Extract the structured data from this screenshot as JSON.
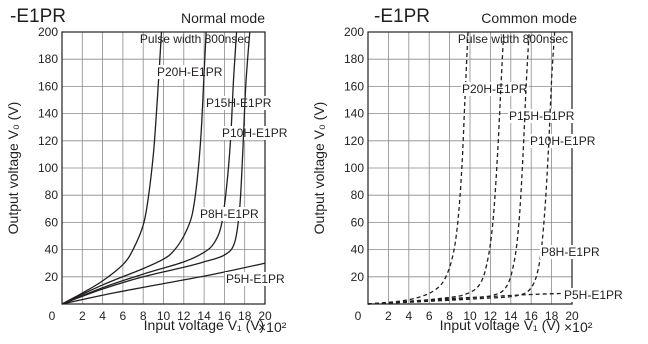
{
  "chart_data": [
    {
      "type": "line",
      "title": "-E1PR",
      "subtitle": "Normal mode",
      "xlabel": "Input voltage V₁ (V)",
      "ylabel": "Output voltage V₀ (V)",
      "x_multiplier": "×10²",
      "annotation": "Pulse width 800nsec",
      "xlim": [
        0,
        20
      ],
      "ylim": [
        0,
        200
      ],
      "x_ticks": [
        0,
        2,
        4,
        6,
        8,
        10,
        12,
        14,
        16,
        18,
        20
      ],
      "y_ticks": [
        0,
        20,
        40,
        60,
        80,
        100,
        120,
        140,
        160,
        180,
        200
      ],
      "grid": true,
      "line_style": "solid",
      "series": [
        {
          "name": "P20H-E1PR",
          "x": [
            0,
            2,
            4,
            6,
            7,
            8,
            8.5,
            9,
            9.3,
            9.6,
            9.8
          ],
          "y": [
            0,
            8,
            17,
            29,
            40,
            58,
            78,
            110,
            140,
            175,
            200
          ]
        },
        {
          "name": "P15H-E1PR",
          "x": [
            0,
            4,
            8,
            10,
            11,
            12,
            12.8,
            13.3,
            13.7,
            14,
            14.2
          ],
          "y": [
            0,
            14,
            26,
            33,
            39,
            50,
            65,
            90,
            125,
            170,
            200
          ]
        },
        {
          "name": "P10H-E1PR",
          "x": [
            0,
            4,
            8,
            12,
            14,
            15,
            15.7,
            16.2,
            16.6,
            16.9,
            17.2
          ],
          "y": [
            0,
            12,
            22,
            31,
            38,
            45,
            58,
            85,
            120,
            165,
            200
          ]
        },
        {
          "name": "P8H-E1PR",
          "x": [
            0,
            4,
            8,
            12,
            14,
            16,
            17,
            17.5,
            17.8,
            18.1,
            18.5
          ],
          "y": [
            0,
            11,
            20,
            27,
            31,
            36,
            45,
            70,
            110,
            160,
            200
          ]
        },
        {
          "name": "P5H-E1PR",
          "x": [
            0,
            5,
            10,
            15,
            20
          ],
          "y": [
            0,
            8,
            15,
            22,
            30
          ]
        }
      ]
    },
    {
      "type": "line",
      "title": "-E1PR",
      "subtitle": "Common mode",
      "xlabel": "Input voltage V₁ (V)",
      "ylabel": "Output voltage V₀ (V)",
      "x_multiplier": "×10²",
      "annotation": "Pulse width 800nsec",
      "xlim": [
        0,
        20
      ],
      "ylim": [
        0,
        200
      ],
      "x_ticks": [
        0,
        2,
        4,
        6,
        8,
        10,
        12,
        14,
        16,
        18,
        20
      ],
      "y_ticks": [
        0,
        20,
        40,
        60,
        80,
        100,
        120,
        140,
        160,
        180,
        200
      ],
      "grid": true,
      "line_style": "dashed",
      "series": [
        {
          "name": "P20H-E1PR",
          "x": [
            0,
            3,
            5,
            6.5,
            7.5,
            8.3,
            8.8,
            9.2,
            9.5,
            9.8
          ],
          "y": [
            0,
            2,
            5,
            10,
            18,
            35,
            60,
            100,
            150,
            200
          ]
        },
        {
          "name": "P15H-E1PR",
          "x": [
            0,
            4,
            7,
            9.5,
            11,
            11.8,
            12.3,
            12.7,
            13,
            13.3
          ],
          "y": [
            0,
            2,
            4,
            7,
            15,
            35,
            65,
            110,
            155,
            200
          ]
        },
        {
          "name": "P10H-E1PR",
          "x": [
            0,
            5,
            9,
            12,
            13.5,
            14.3,
            14.8,
            15.2,
            15.5,
            15.8
          ],
          "y": [
            0,
            2,
            4,
            6,
            12,
            30,
            60,
            110,
            160,
            200
          ]
        },
        {
          "name": "P8H-E1PR",
          "x": [
            0,
            6,
            11,
            14.5,
            16,
            16.8,
            17.3,
            17.7,
            18,
            18.3
          ],
          "y": [
            0,
            2,
            4,
            6,
            12,
            30,
            65,
            115,
            165,
            200
          ]
        },
        {
          "name": "P5H-E1PR",
          "x": [
            0,
            4,
            8,
            12,
            16,
            20
          ],
          "y": [
            0,
            2,
            4,
            5.5,
            7,
            8
          ]
        }
      ]
    }
  ]
}
